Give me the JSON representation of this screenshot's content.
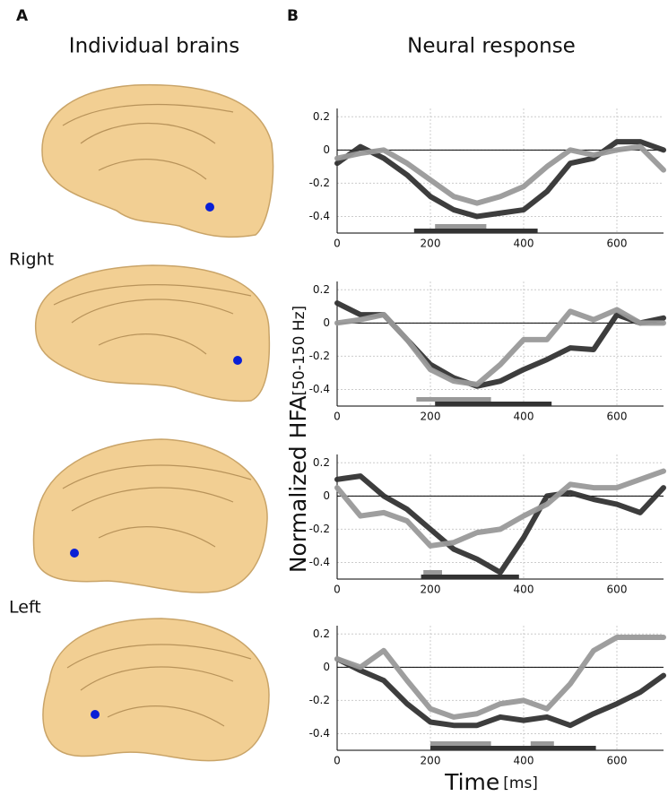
{
  "figure": {
    "panel_a": "A",
    "panel_b": "B",
    "title_a": "Individual brains",
    "title_b": "Neural response",
    "label_right": "Right",
    "label_left": "Left",
    "ylabel": "Normalized HFA",
    "ylabel_unit": "[50-150 Hz]",
    "xlabel": "Time",
    "xlabel_unit": "[ms]"
  },
  "chart_data": [
    {
      "type": "line",
      "xlim": [
        0,
        700
      ],
      "ylim": [
        -0.5,
        0.25
      ],
      "xticks": [
        0,
        200,
        400,
        600
      ],
      "yticks": [
        0.2,
        0,
        -0.2,
        -0.4
      ],
      "grid": true,
      "zero_line": true,
      "x": [
        0,
        50,
        100,
        150,
        200,
        250,
        300,
        350,
        400,
        450,
        500,
        550,
        600,
        650,
        700
      ],
      "series": [
        {
          "color": "#333333",
          "values": [
            -0.08,
            0.02,
            -0.05,
            -0.15,
            -0.28,
            -0.36,
            -0.4,
            -0.38,
            -0.36,
            -0.25,
            -0.08,
            -0.05,
            0.05,
            0.05,
            0.0
          ],
          "significant": [
            [
              165,
              430
            ]
          ]
        },
        {
          "color": "#999999",
          "values": [
            -0.05,
            -0.02,
            0.0,
            -0.08,
            -0.18,
            -0.28,
            -0.32,
            -0.28,
            -0.22,
            -0.1,
            0.0,
            -0.03,
            0.0,
            0.02,
            -0.12
          ],
          "significant": [
            [
              210,
              320
            ]
          ]
        }
      ]
    },
    {
      "type": "line",
      "xlim": [
        0,
        700
      ],
      "ylim": [
        -0.5,
        0.25
      ],
      "xticks": [
        0,
        200,
        400,
        600
      ],
      "yticks": [
        0.2,
        0,
        -0.2,
        -0.4
      ],
      "grid": true,
      "zero_line": true,
      "x": [
        0,
        50,
        100,
        150,
        200,
        250,
        300,
        350,
        400,
        450,
        500,
        550,
        600,
        650,
        700
      ],
      "series": [
        {
          "color": "#333333",
          "values": [
            0.12,
            0.05,
            0.05,
            -0.1,
            -0.25,
            -0.33,
            -0.38,
            -0.35,
            -0.28,
            -0.22,
            -0.15,
            -0.16,
            0.05,
            0.0,
            0.03
          ],
          "significant": [
            [
              210,
              460
            ]
          ]
        },
        {
          "color": "#999999",
          "values": [
            0.0,
            0.02,
            0.05,
            -0.1,
            -0.28,
            -0.35,
            -0.37,
            -0.25,
            -0.1,
            -0.1,
            0.07,
            0.02,
            0.08,
            0.0,
            0.0
          ],
          "significant": [
            [
              170,
              330
            ]
          ]
        }
      ]
    },
    {
      "type": "line",
      "xlim": [
        0,
        700
      ],
      "ylim": [
        -0.5,
        0.25
      ],
      "xticks": [
        0,
        200,
        400,
        600
      ],
      "yticks": [
        0.2,
        0,
        -0.2,
        -0.4
      ],
      "grid": true,
      "zero_line": true,
      "x": [
        0,
        50,
        100,
        150,
        200,
        250,
        300,
        350,
        400,
        450,
        500,
        550,
        600,
        650,
        700
      ],
      "series": [
        {
          "color": "#333333",
          "values": [
            0.1,
            0.12,
            0.0,
            -0.08,
            -0.2,
            -0.32,
            -0.38,
            -0.46,
            -0.25,
            0.0,
            0.02,
            -0.02,
            -0.05,
            -0.1,
            0.05
          ],
          "significant": [
            [
              180,
              390
            ]
          ]
        },
        {
          "color": "#999999",
          "values": [
            0.05,
            -0.12,
            -0.1,
            -0.15,
            -0.3,
            -0.28,
            -0.22,
            -0.2,
            -0.12,
            -0.05,
            0.07,
            0.05,
            0.05,
            0.1,
            0.15
          ],
          "significant": [
            [
              185,
              225
            ]
          ]
        }
      ]
    },
    {
      "type": "line",
      "xlim": [
        0,
        700
      ],
      "ylim": [
        -0.5,
        0.25
      ],
      "xticks": [
        0,
        200,
        400,
        600
      ],
      "yticks": [
        0.2,
        0,
        -0.2,
        -0.4
      ],
      "grid": true,
      "zero_line": true,
      "x": [
        0,
        50,
        100,
        150,
        200,
        250,
        300,
        350,
        400,
        450,
        500,
        550,
        600,
        650,
        700
      ],
      "series": [
        {
          "color": "#333333",
          "values": [
            0.05,
            -0.02,
            -0.08,
            -0.22,
            -0.33,
            -0.35,
            -0.35,
            -0.3,
            -0.32,
            -0.3,
            -0.35,
            -0.28,
            -0.22,
            -0.15,
            -0.05
          ],
          "significant": [
            [
              200,
              555
            ]
          ]
        },
        {
          "color": "#999999",
          "values": [
            0.05,
            0.0,
            0.1,
            -0.08,
            -0.25,
            -0.3,
            -0.28,
            -0.22,
            -0.2,
            -0.25,
            -0.1,
            0.1,
            0.18,
            0.18,
            0.18
          ],
          "significant": [
            [
              200,
              330
            ],
            [
              415,
              465
            ]
          ]
        }
      ]
    }
  ]
}
